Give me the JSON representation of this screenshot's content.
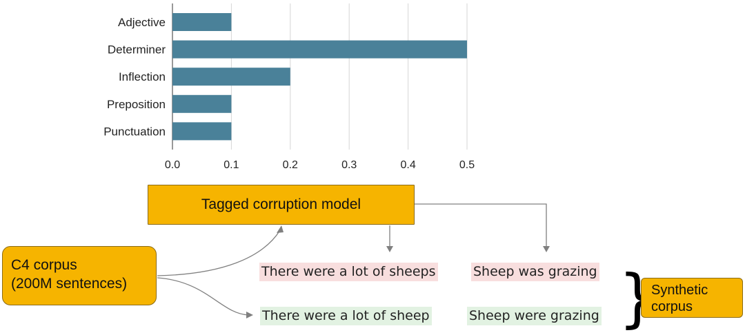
{
  "chart_data": {
    "type": "bar",
    "orientation": "horizontal",
    "categories": [
      "Adjective",
      "Determiner",
      "Inflection",
      "Preposition",
      "Punctuation"
    ],
    "values": [
      0.1,
      0.5,
      0.2,
      0.1,
      0.1
    ],
    "xlim": [
      0,
      0.5
    ],
    "xticks": [
      0.0,
      0.1,
      0.2,
      0.3,
      0.4,
      0.5
    ],
    "xtick_labels": [
      "0.0",
      "0.1",
      "0.2",
      "0.3",
      "0.4",
      "0.5"
    ],
    "grid": true,
    "bar_color": "#4a8199"
  },
  "diagram": {
    "model_label": "Tagged corruption model",
    "corpus_line1": "C4 corpus",
    "corpus_line2": "(200M sentences)",
    "synthetic_line1": "Synthetic",
    "synthetic_line2": "corpus",
    "corrupted_sentences": [
      "There were a lot of sheeps",
      "Sheep was grazing"
    ],
    "clean_sentences": [
      "There were a lot of sheep",
      "Sheep were grazing"
    ],
    "box_color": "#f6b400",
    "corrupted_bg": "#f8dede",
    "clean_bg": "#e2f2e2"
  }
}
